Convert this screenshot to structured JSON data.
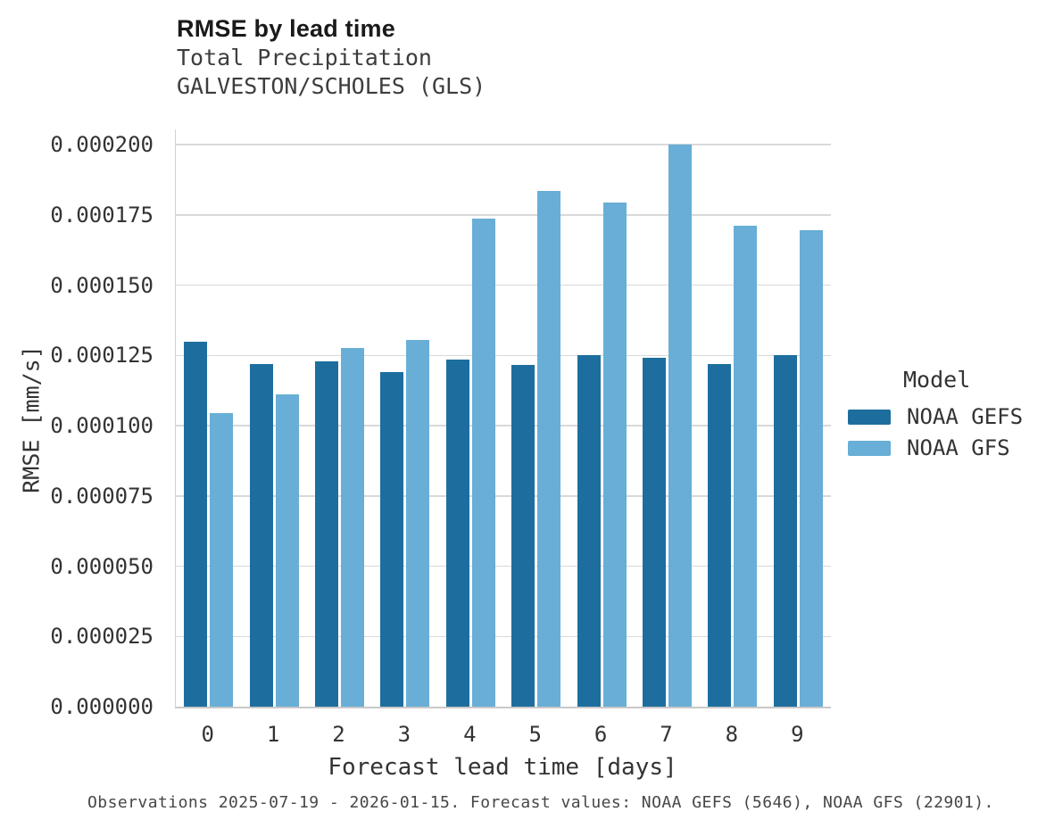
{
  "chart": {
    "title": "RMSE by lead time",
    "subtitle_line1": "Total Precipitation",
    "subtitle_line2": "GALVESTON/SCHOLES (GLS)",
    "xlabel": "Forecast lead time [days]",
    "ylabel": "RMSE [mm/s]",
    "caption": "Observations 2025-07-19 - 2026-01-15. Forecast values: NOAA GEFS (5646), NOAA GFS (22901)."
  },
  "legend": {
    "title": "Model",
    "items": [
      {
        "label": "NOAA GEFS",
        "color": "#1d6e9e"
      },
      {
        "label": "NOAA GFS",
        "color": "#68aed6"
      }
    ]
  },
  "colors": {
    "gefs_bar": "#1d6e9e",
    "gfs_bar": "#68aed6",
    "gridline": "#d9d9d9",
    "axis_line": "#c9c9c9",
    "text": "#333333"
  },
  "chart_data": {
    "type": "bar",
    "title": "RMSE by lead time",
    "subtitle": [
      "Total Precipitation",
      "GALVESTON/SCHOLES (GLS)"
    ],
    "xlabel": "Forecast lead time [days]",
    "ylabel": "RMSE [mm/s]",
    "categories": [
      "0",
      "1",
      "2",
      "3",
      "4",
      "5",
      "6",
      "7",
      "8",
      "9"
    ],
    "series": [
      {
        "name": "NOAA GEFS",
        "color": "#1d6e9e",
        "values": [
          0.00013,
          0.000122,
          0.000123,
          0.000119,
          0.0001235,
          0.0001215,
          0.000125,
          0.000124,
          0.000122,
          0.000125
        ]
      },
      {
        "name": "NOAA GFS",
        "color": "#68aed6",
        "values": [
          0.0001045,
          0.000111,
          0.0001275,
          0.0001305,
          0.0001735,
          0.0001835,
          0.0001795,
          0.0002,
          0.000171,
          0.0001695
        ]
      }
    ],
    "ylim": [
      0,
      0.0002
    ],
    "ytick_step": 2.5e-05,
    "ytick_labels": [
      "0.000000",
      "0.000025",
      "0.000050",
      "0.000075",
      "0.000100",
      "0.000125",
      "0.000150",
      "0.000175",
      "0.000200"
    ],
    "grid": true,
    "legend_title": "Model",
    "legend_position": "right",
    "caption": "Observations 2025-07-19 - 2026-01-15. Forecast values: NOAA GEFS (5646), NOAA GFS (22901)."
  }
}
